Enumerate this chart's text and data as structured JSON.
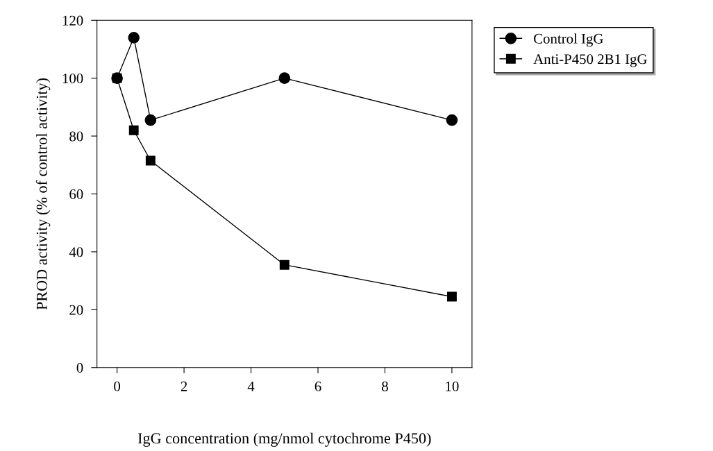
{
  "chart_data": {
    "type": "line",
    "xlabel": "IgG concentration (mg/nmol cytochrome P450)",
    "ylabel": "PROD activity (% of control activity)",
    "xlim": [
      -0.6,
      10.6
    ],
    "xticks": [
      0,
      2,
      4,
      6,
      8,
      10
    ],
    "ylim": [
      0,
      120
    ],
    "yticks": [
      0,
      20,
      40,
      60,
      80,
      100,
      120
    ],
    "grid": false,
    "legend": "top right",
    "series": [
      {
        "name": "Control IgG",
        "color": "#000000",
        "marker": "circle",
        "x": [
          0,
          0.5,
          1,
          5,
          10
        ],
        "values": [
          100,
          114,
          85.5,
          100,
          85.5
        ]
      },
      {
        "name": "Anti-P450 2B1 IgG",
        "color": "#000000",
        "marker": "square",
        "x": [
          0,
          0.5,
          1,
          5,
          10
        ],
        "values": [
          100,
          82,
          71.5,
          35.5,
          24.5
        ]
      }
    ]
  }
}
